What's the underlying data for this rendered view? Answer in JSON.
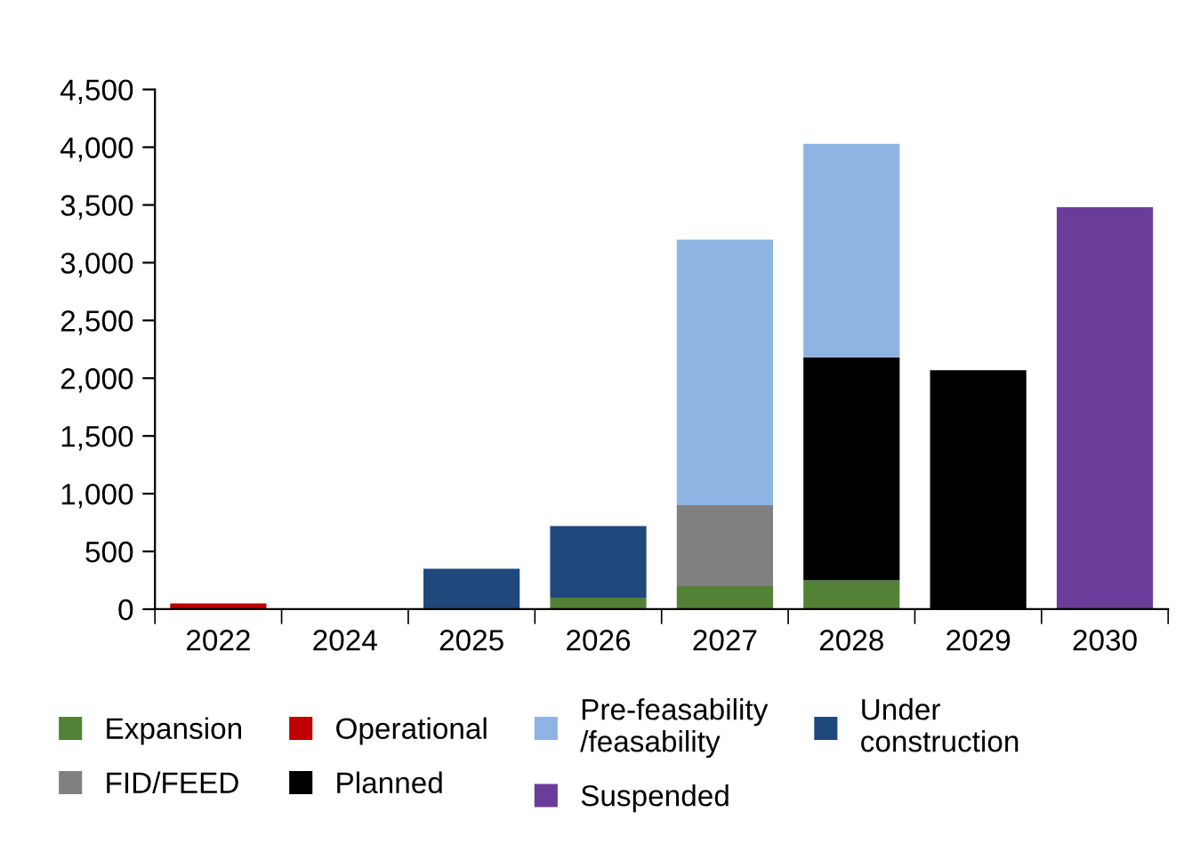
{
  "chart_data": {
    "type": "bar",
    "stacked": true,
    "categories": [
      "2022",
      "2024",
      "2025",
      "2026",
      "2027",
      "2028",
      "2029",
      "2030"
    ],
    "series": [
      {
        "name": "Expansion",
        "color": "#538135",
        "values": [
          null,
          null,
          null,
          100,
          200,
          250,
          null,
          null
        ]
      },
      {
        "name": "FID/FEED",
        "color": "#808080",
        "values": [
          null,
          null,
          null,
          null,
          700,
          null,
          null,
          null
        ]
      },
      {
        "name": "Operational",
        "color": "#c00000",
        "values": [
          50,
          null,
          null,
          null,
          null,
          null,
          null,
          null
        ]
      },
      {
        "name": "Planned",
        "color": "#000000",
        "values": [
          null,
          null,
          null,
          null,
          null,
          1930,
          2070,
          null
        ]
      },
      {
        "name": "Pre-feasability\n/feasability",
        "color": "#8eb4e3",
        "values": [
          null,
          null,
          null,
          null,
          2300,
          1850,
          null,
          null
        ]
      },
      {
        "name": "Suspended",
        "color": "#6a3d9a",
        "values": [
          null,
          null,
          null,
          null,
          null,
          null,
          null,
          3480
        ]
      },
      {
        "name": "Under\nconstruction",
        "color": "#1f497d",
        "values": [
          null,
          null,
          350,
          620,
          null,
          null,
          null,
          null
        ]
      }
    ],
    "ylim": [
      0,
      4500
    ],
    "yticks": [
      {
        "value": 0,
        "label": "0"
      },
      {
        "value": 500,
        "label": "500"
      },
      {
        "value": 1000,
        "label": "1,000"
      },
      {
        "value": 1500,
        "label": "1,500"
      },
      {
        "value": 2000,
        "label": "2,000"
      },
      {
        "value": 2500,
        "label": "2,500"
      },
      {
        "value": 3000,
        "label": "3,000"
      },
      {
        "value": 3500,
        "label": "3,500"
      },
      {
        "value": 4000,
        "label": "4,000"
      },
      {
        "value": 4500,
        "label": "4,500"
      }
    ],
    "grid": false,
    "legend": "bottom"
  }
}
